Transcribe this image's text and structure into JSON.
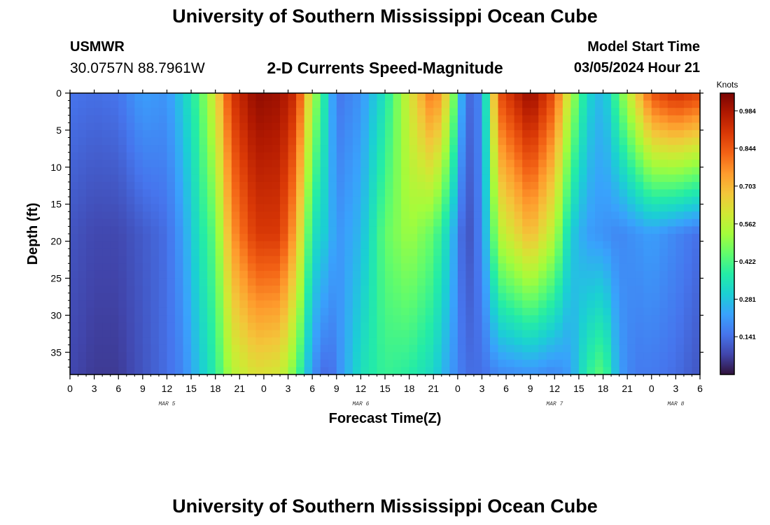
{
  "page": {
    "title": "University of Southern Mississippi Ocean Cube",
    "station": "USMWR",
    "coordinates": "30.0757N  88.7961W",
    "subtitle": "2-D Currents Speed-Magnitude",
    "model_start_label": "Model Start Time",
    "model_start_value": "03/05/2024 Hour 21",
    "footer_title": "University of Southern Mississippi Ocean Cube"
  },
  "chart_data": {
    "type": "heatmap",
    "xlabel": "Forecast Time(Z)",
    "ylabel": "Depth (ft)",
    "colorbar_title": "Knots",
    "x_range_hours": [
      0,
      78
    ],
    "y_range_ft": [
      0,
      38
    ],
    "x_tick_labels": [
      "0",
      "3",
      "6",
      "9",
      "12",
      "15",
      "18",
      "21",
      "0",
      "3",
      "6",
      "9",
      "12",
      "15",
      "18",
      "21",
      "0",
      "3",
      "6",
      "9",
      "12",
      "15",
      "18",
      "21",
      "0",
      "3",
      "6"
    ],
    "y_ticks": [
      0,
      5,
      10,
      15,
      20,
      25,
      30,
      35
    ],
    "date_labels": [
      {
        "text": "MAR 5",
        "hour": 12
      },
      {
        "text": "MAR 6",
        "hour": 36
      },
      {
        "text": "MAR 7",
        "hour": 60
      },
      {
        "text": "MAR 8",
        "hour": 75
      }
    ],
    "colorbar_ticks": [
      "0.984",
      "0.844",
      "0.703",
      "0.562",
      "0.422",
      "0.281",
      "0.141"
    ],
    "colorbar_tick_values": [
      0.984,
      0.844,
      0.703,
      0.562,
      0.422,
      0.281,
      0.141
    ],
    "value_range": [
      0,
      1.05
    ],
    "colormap": [
      "#30123b",
      "#4145ab",
      "#4675ed",
      "#39a2fc",
      "#1bcfd4",
      "#24eca6",
      "#61fc6c",
      "#a4fc3b",
      "#d1e834",
      "#f3c63a",
      "#fe9b2d",
      "#f36315",
      "#d93806",
      "#b11901",
      "#7a0402"
    ],
    "columns": [
      {
        "hour": 0,
        "top": 0.15,
        "mid": 0.1,
        "bot": 0.08
      },
      {
        "hour": 3,
        "top": 0.14,
        "mid": 0.08,
        "bot": 0.06
      },
      {
        "hour": 6,
        "top": 0.15,
        "mid": 0.08,
        "bot": 0.06
      },
      {
        "hour": 9,
        "top": 0.22,
        "mid": 0.11,
        "bot": 0.1
      },
      {
        "hour": 12,
        "top": 0.2,
        "mid": 0.14,
        "bot": 0.14
      },
      {
        "hour": 14,
        "top": 0.3,
        "mid": 0.22,
        "bot": 0.18
      },
      {
        "hour": 16,
        "top": 0.42,
        "mid": 0.35,
        "bot": 0.28
      },
      {
        "hour": 18,
        "top": 0.62,
        "mid": 0.45,
        "bot": 0.38
      },
      {
        "hour": 20,
        "top": 0.9,
        "mid": 0.75,
        "bot": 0.55
      },
      {
        "hour": 23,
        "top": 1.02,
        "mid": 0.9,
        "bot": 0.62
      },
      {
        "hour": 26,
        "top": 1.0,
        "mid": 0.9,
        "bot": 0.6
      },
      {
        "hour": 28,
        "top": 0.92,
        "mid": 0.72,
        "bot": 0.45
      },
      {
        "hour": 30,
        "top": 0.55,
        "mid": 0.35,
        "bot": 0.2
      },
      {
        "hour": 32,
        "top": 0.3,
        "mid": 0.28,
        "bot": 0.12
      },
      {
        "hour": 33,
        "top": 0.15,
        "mid": 0.2,
        "bot": 0.18
      },
      {
        "hour": 36,
        "top": 0.2,
        "mid": 0.26,
        "bot": 0.34
      },
      {
        "hour": 39,
        "top": 0.35,
        "mid": 0.45,
        "bot": 0.4
      },
      {
        "hour": 42,
        "top": 0.6,
        "mid": 0.52,
        "bot": 0.38
      },
      {
        "hour": 45,
        "top": 0.82,
        "mid": 0.45,
        "bot": 0.32
      },
      {
        "hour": 47,
        "top": 0.6,
        "mid": 0.3,
        "bot": 0.22
      },
      {
        "hour": 49,
        "top": 0.12,
        "mid": 0.08,
        "bot": 0.14
      },
      {
        "hour": 51,
        "top": 0.18,
        "mid": 0.18,
        "bot": 0.14
      },
      {
        "hour": 53,
        "top": 0.85,
        "mid": 0.55,
        "bot": 0.18
      },
      {
        "hour": 57,
        "top": 1.02,
        "mid": 0.7,
        "bot": 0.2
      },
      {
        "hour": 60,
        "top": 0.85,
        "mid": 0.55,
        "bot": 0.18
      },
      {
        "hour": 62,
        "top": 0.55,
        "mid": 0.3,
        "bot": 0.22
      },
      {
        "hour": 64,
        "top": 0.32,
        "mid": 0.22,
        "bot": 0.38
      },
      {
        "hour": 66,
        "top": 0.25,
        "mid": 0.2,
        "bot": 0.45
      },
      {
        "hour": 68,
        "top": 0.45,
        "mid": 0.18,
        "bot": 0.22
      },
      {
        "hour": 70,
        "top": 0.65,
        "mid": 0.2,
        "bot": 0.16
      },
      {
        "hour": 72,
        "top": 0.85,
        "mid": 0.22,
        "bot": 0.16
      },
      {
        "hour": 75,
        "top": 0.92,
        "mid": 0.18,
        "bot": 0.14
      },
      {
        "hour": 78,
        "top": 0.88,
        "mid": 0.14,
        "bot": 0.1
      }
    ]
  }
}
